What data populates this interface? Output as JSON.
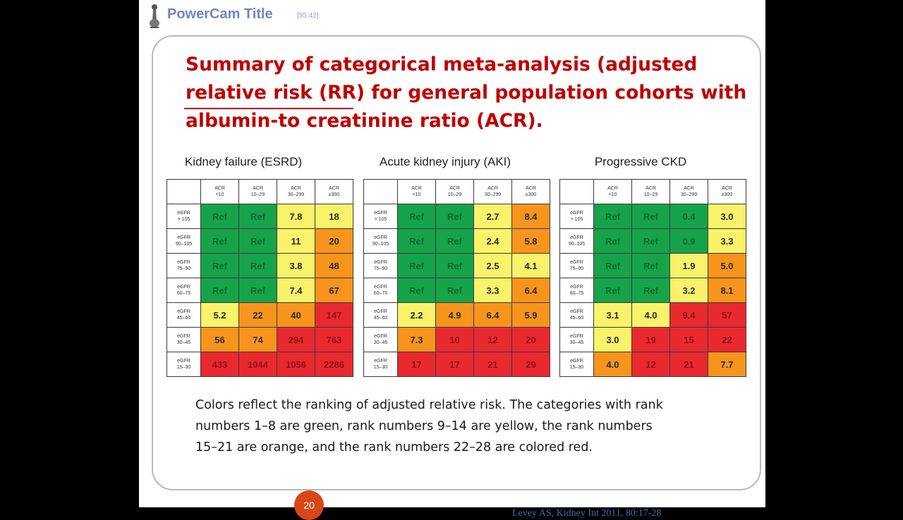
{
  "app": {
    "title": "PowerCam Title",
    "time": "[55:42]"
  },
  "slide": {
    "title_lines": [
      "Summary of categorical meta-analysis (adjusted",
      "relative risk (RR) for general population cohorts with",
      "albumin-to creatinine ratio (ACR)."
    ],
    "caption_lines": [
      "Colors reflect the ranking of adjusted relative risk. The categories with rank",
      "numbers 1–8 are green, rank numbers 9–14 are yellow, the rank numbers",
      "15–21 are orange, and the rank numbers 22–28 are colored red."
    ],
    "page_number": "20",
    "citation": "Levey AS, Kidney Int 2011, 80:17-28"
  },
  "colors": {
    "green": "#16a34a",
    "yellow": "#f9f26b",
    "orange": "#f7941d",
    "red": "#e8292f",
    "title": "#c00000"
  },
  "tables": [
    {
      "heading": "Kidney failure (ESRD)",
      "col_headers": [
        [
          "ACR",
          "<10"
        ],
        [
          "ACR",
          "10–29"
        ],
        [
          "ACR",
          "30–299"
        ],
        [
          "ACR",
          "≥300"
        ]
      ],
      "row_headers": [
        [
          "eGFR",
          "> 105"
        ],
        [
          "eGFR",
          "90–105"
        ],
        [
          "eGFR",
          "75–90"
        ],
        [
          "eGFR",
          "60–75"
        ],
        [
          "eGFR",
          "45–60"
        ],
        [
          "eGFR",
          "30–45"
        ],
        [
          "eGFR",
          "15–30"
        ]
      ],
      "rows": [
        [
          {
            "v": "Ref",
            "c": "g"
          },
          {
            "v": "Ref",
            "c": "g"
          },
          {
            "v": "7.8",
            "c": "y"
          },
          {
            "v": "18",
            "c": "y"
          }
        ],
        [
          {
            "v": "Ref",
            "c": "g"
          },
          {
            "v": "Ref",
            "c": "g"
          },
          {
            "v": "11",
            "c": "y"
          },
          {
            "v": "20",
            "c": "o"
          }
        ],
        [
          {
            "v": "Ref",
            "c": "g"
          },
          {
            "v": "Ref",
            "c": "g"
          },
          {
            "v": "3.8",
            "c": "y"
          },
          {
            "v": "48",
            "c": "o"
          }
        ],
        [
          {
            "v": "Ref",
            "c": "g"
          },
          {
            "v": "Ref",
            "c": "g"
          },
          {
            "v": "7.4",
            "c": "y"
          },
          {
            "v": "67",
            "c": "o"
          }
        ],
        [
          {
            "v": "5.2",
            "c": "y"
          },
          {
            "v": "22",
            "c": "o"
          },
          {
            "v": "40",
            "c": "o"
          },
          {
            "v": "147",
            "c": "r"
          }
        ],
        [
          {
            "v": "56",
            "c": "o"
          },
          {
            "v": "74",
            "c": "o"
          },
          {
            "v": "294",
            "c": "r"
          },
          {
            "v": "763",
            "c": "r"
          }
        ],
        [
          {
            "v": "433",
            "c": "r"
          },
          {
            "v": "1044",
            "c": "r"
          },
          {
            "v": "1056",
            "c": "r"
          },
          {
            "v": "2286",
            "c": "r"
          }
        ]
      ]
    },
    {
      "heading": "Acute kidney injury (AKI)",
      "col_headers": [
        [
          "ACR",
          "<10"
        ],
        [
          "ACR",
          "10–29"
        ],
        [
          "ACR",
          "30–299"
        ],
        [
          "ACR",
          "≥300"
        ]
      ],
      "row_headers": [
        [
          "eGFR",
          "> 105"
        ],
        [
          "eGFR",
          "90–105"
        ],
        [
          "eGFR",
          "75–90"
        ],
        [
          "eGFR",
          "60–75"
        ],
        [
          "eGFR",
          "45–60"
        ],
        [
          "eGFR",
          "30–45"
        ],
        [
          "eGFR",
          "15–30"
        ]
      ],
      "rows": [
        [
          {
            "v": "Ref",
            "c": "g"
          },
          {
            "v": "Ref",
            "c": "g"
          },
          {
            "v": "2.7",
            "c": "y"
          },
          {
            "v": "8.4",
            "c": "o"
          }
        ],
        [
          {
            "v": "Ref",
            "c": "g"
          },
          {
            "v": "Ref",
            "c": "g"
          },
          {
            "v": "2.4",
            "c": "y"
          },
          {
            "v": "5.8",
            "c": "o"
          }
        ],
        [
          {
            "v": "Ref",
            "c": "g"
          },
          {
            "v": "Ref",
            "c": "g"
          },
          {
            "v": "2.5",
            "c": "y"
          },
          {
            "v": "4.1",
            "c": "y"
          }
        ],
        [
          {
            "v": "Ref",
            "c": "g"
          },
          {
            "v": "Ref",
            "c": "g"
          },
          {
            "v": "3.3",
            "c": "y"
          },
          {
            "v": "6.4",
            "c": "o"
          }
        ],
        [
          {
            "v": "2.2",
            "c": "y"
          },
          {
            "v": "4.9",
            "c": "o"
          },
          {
            "v": "6.4",
            "c": "o"
          },
          {
            "v": "5.9",
            "c": "o"
          }
        ],
        [
          {
            "v": "7.3",
            "c": "o"
          },
          {
            "v": "10",
            "c": "r"
          },
          {
            "v": "12",
            "c": "r"
          },
          {
            "v": "20",
            "c": "r"
          }
        ],
        [
          {
            "v": "17",
            "c": "r"
          },
          {
            "v": "17",
            "c": "r"
          },
          {
            "v": "21",
            "c": "r"
          },
          {
            "v": "29",
            "c": "r"
          }
        ]
      ]
    },
    {
      "heading": "Progressive CKD",
      "col_headers": [
        [
          "ACR",
          "<10"
        ],
        [
          "ACR",
          "10–29"
        ],
        [
          "ACR",
          "30–299"
        ],
        [
          "ACR",
          "≥300"
        ]
      ],
      "row_headers": [
        [
          "eGFR",
          "> 105"
        ],
        [
          "eGFR",
          "90–105"
        ],
        [
          "eGFR",
          "75–90"
        ],
        [
          "eGFR",
          "60–75"
        ],
        [
          "eGFR",
          "45–60"
        ],
        [
          "eGFR",
          "30–45"
        ],
        [
          "eGFR",
          "15–30"
        ]
      ],
      "rows": [
        [
          {
            "v": "Ref",
            "c": "g"
          },
          {
            "v": "Ref",
            "c": "g"
          },
          {
            "v": "0.4",
            "c": "g"
          },
          {
            "v": "3.0",
            "c": "y"
          }
        ],
        [
          {
            "v": "Ref",
            "c": "g"
          },
          {
            "v": "Ref",
            "c": "g"
          },
          {
            "v": "0.9",
            "c": "g"
          },
          {
            "v": "3.3",
            "c": "y"
          }
        ],
        [
          {
            "v": "Ref",
            "c": "g"
          },
          {
            "v": "Ref",
            "c": "g"
          },
          {
            "v": "1.9",
            "c": "y"
          },
          {
            "v": "5.0",
            "c": "o"
          }
        ],
        [
          {
            "v": "Ref",
            "c": "g"
          },
          {
            "v": "Ref",
            "c": "g"
          },
          {
            "v": "3.2",
            "c": "y"
          },
          {
            "v": "8.1",
            "c": "o"
          }
        ],
        [
          {
            "v": "3.1",
            "c": "y"
          },
          {
            "v": "4.0",
            "c": "y"
          },
          {
            "v": "9.4",
            "c": "r"
          },
          {
            "v": "57",
            "c": "r"
          }
        ],
        [
          {
            "v": "3.0",
            "c": "y"
          },
          {
            "v": "19",
            "c": "r"
          },
          {
            "v": "15",
            "c": "r"
          },
          {
            "v": "22",
            "c": "r"
          }
        ],
        [
          {
            "v": "4.0",
            "c": "o"
          },
          {
            "v": "12",
            "c": "r"
          },
          {
            "v": "21",
            "c": "r"
          },
          {
            "v": "7.7",
            "c": "o"
          }
        ]
      ]
    }
  ]
}
